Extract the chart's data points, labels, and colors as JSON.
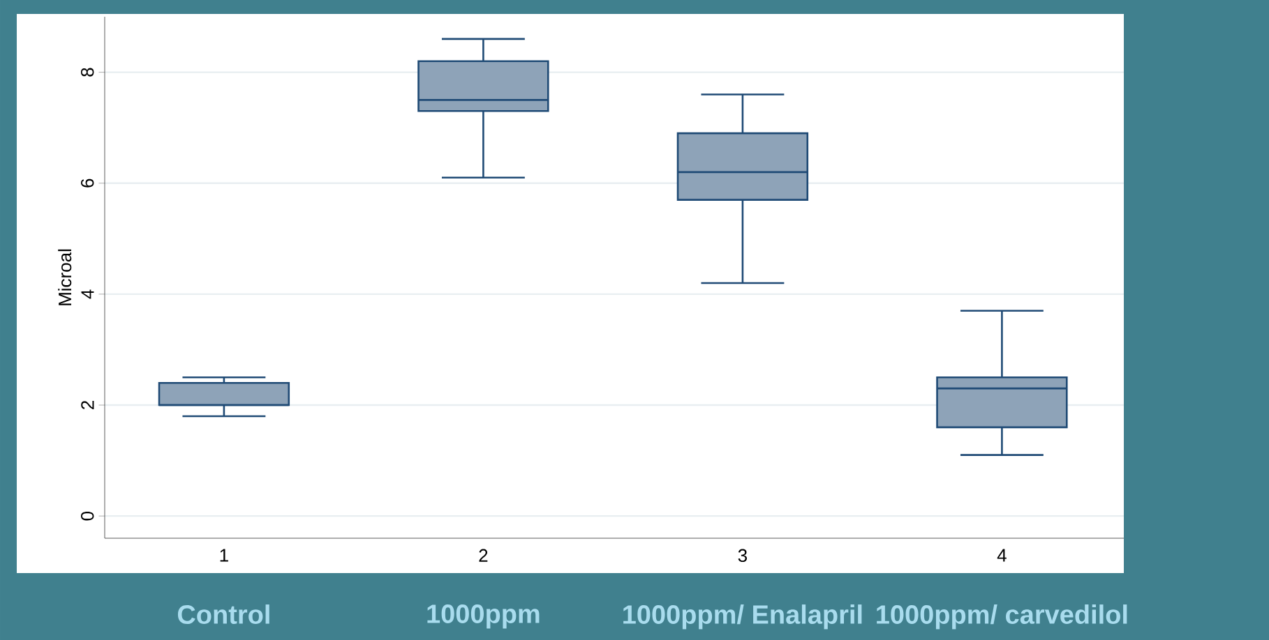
{
  "chart_data": {
    "type": "box",
    "categories": [
      "1",
      "2",
      "3",
      "4"
    ],
    "ylabel": "Microal",
    "ylim": [
      -0.4,
      9
    ],
    "yticks": [
      0,
      2,
      4,
      6,
      8
    ],
    "grid": "y",
    "color": "#8ea3b8",
    "boxes": [
      {
        "low": 1.8,
        "q1": 2.0,
        "median": 2.0,
        "q3": 2.4,
        "high": 2.5
      },
      {
        "low": 6.1,
        "q1": 7.3,
        "median": 7.5,
        "q3": 8.2,
        "high": 8.6
      },
      {
        "low": 4.2,
        "q1": 5.7,
        "median": 6.2,
        "q3": 6.9,
        "high": 7.6
      },
      {
        "low": 1.1,
        "q1": 1.6,
        "median": 2.3,
        "q3": 2.5,
        "high": 3.7
      }
    ],
    "annotations": [
      "Control",
      "1000ppm",
      "1000ppm/ Enalapril",
      "1000ppm/ carvedilol"
    ]
  }
}
